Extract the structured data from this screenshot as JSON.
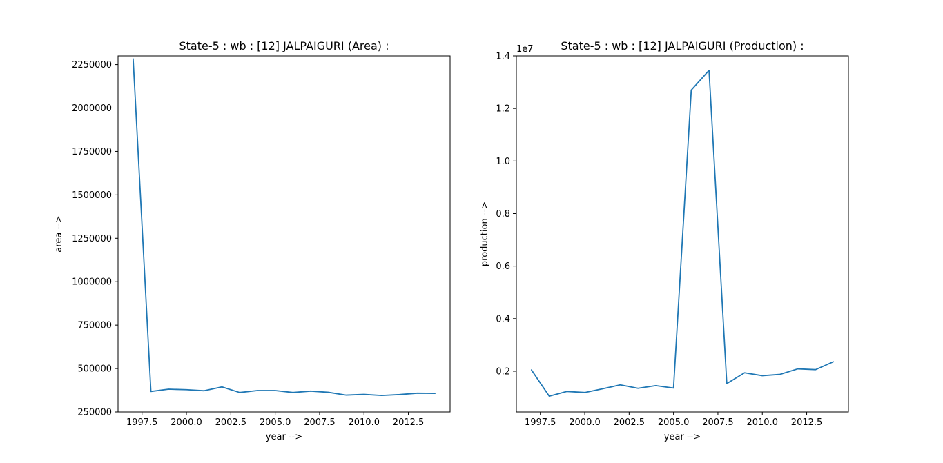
{
  "chart_data": [
    {
      "type": "line",
      "title": "State-5 : wb : [12] JALPAIGURI (Area) :",
      "xlabel": "year -->",
      "ylabel": "area -->",
      "xlim": [
        1996.15,
        2014.85
      ],
      "ylim": [
        250000,
        2300000
      ],
      "xticks": [
        1997.5,
        2000.0,
        2002.5,
        2005.0,
        2007.5,
        2010.0,
        2012.5
      ],
      "xtick_labels": [
        "1997.5",
        "2000.0",
        "2002.5",
        "2005.0",
        "2007.5",
        "2010.0",
        "2012.5"
      ],
      "yticks": [
        250000,
        500000,
        750000,
        1000000,
        1250000,
        1500000,
        1750000,
        2000000,
        2250000
      ],
      "ytick_labels": [
        "250000",
        "500000",
        "750000",
        "1000000",
        "1250000",
        "1500000",
        "1750000",
        "2000000",
        "2250000"
      ],
      "offset_text": "",
      "grid": false,
      "series_color": "#1f77b4",
      "series": [
        {
          "x": [
            1997,
            1998,
            1999,
            2000,
            2001,
            2002,
            2003,
            2004,
            2005,
            2006,
            2007,
            2008,
            2009,
            2010,
            2011,
            2012,
            2013,
            2014
          ],
          "y": [
            2283000,
            368000,
            381000,
            378000,
            372000,
            394000,
            362000,
            373000,
            373000,
            362000,
            370000,
            363000,
            347000,
            351000,
            345000,
            350000,
            358000,
            357000
          ]
        }
      ]
    },
    {
      "type": "line",
      "title": "State-5 : wb : [12] JALPAIGURI (Production) :",
      "xlabel": "year -->",
      "ylabel": "production -->",
      "xlim": [
        1996.15,
        2014.85
      ],
      "ylim": [
        450000,
        14000000
      ],
      "xticks": [
        1997.5,
        2000.0,
        2002.5,
        2005.0,
        2007.5,
        2010.0,
        2012.5
      ],
      "xtick_labels": [
        "1997.5",
        "2000.0",
        "2002.5",
        "2005.0",
        "2007.5",
        "2010.0",
        "2012.5"
      ],
      "yticks": [
        2000000,
        4000000,
        6000000,
        8000000,
        10000000,
        12000000,
        14000000
      ],
      "ytick_labels": [
        "0.2",
        "0.4",
        "0.6",
        "0.8",
        "1.0",
        "1.2",
        "1.4"
      ],
      "offset_text": "1e7",
      "grid": false,
      "series_color": "#1f77b4",
      "series": [
        {
          "x": [
            1997,
            1998,
            1999,
            2000,
            2001,
            2002,
            2003,
            2004,
            2005,
            2006,
            2007,
            2008,
            2009,
            2010,
            2011,
            2012,
            2013,
            2014
          ],
          "y": [
            2050000,
            1050000,
            1230000,
            1190000,
            1330000,
            1480000,
            1350000,
            1450000,
            1360000,
            12700000,
            13450000,
            1530000,
            1940000,
            1830000,
            1880000,
            2090000,
            2060000,
            2360000
          ]
        }
      ]
    }
  ]
}
